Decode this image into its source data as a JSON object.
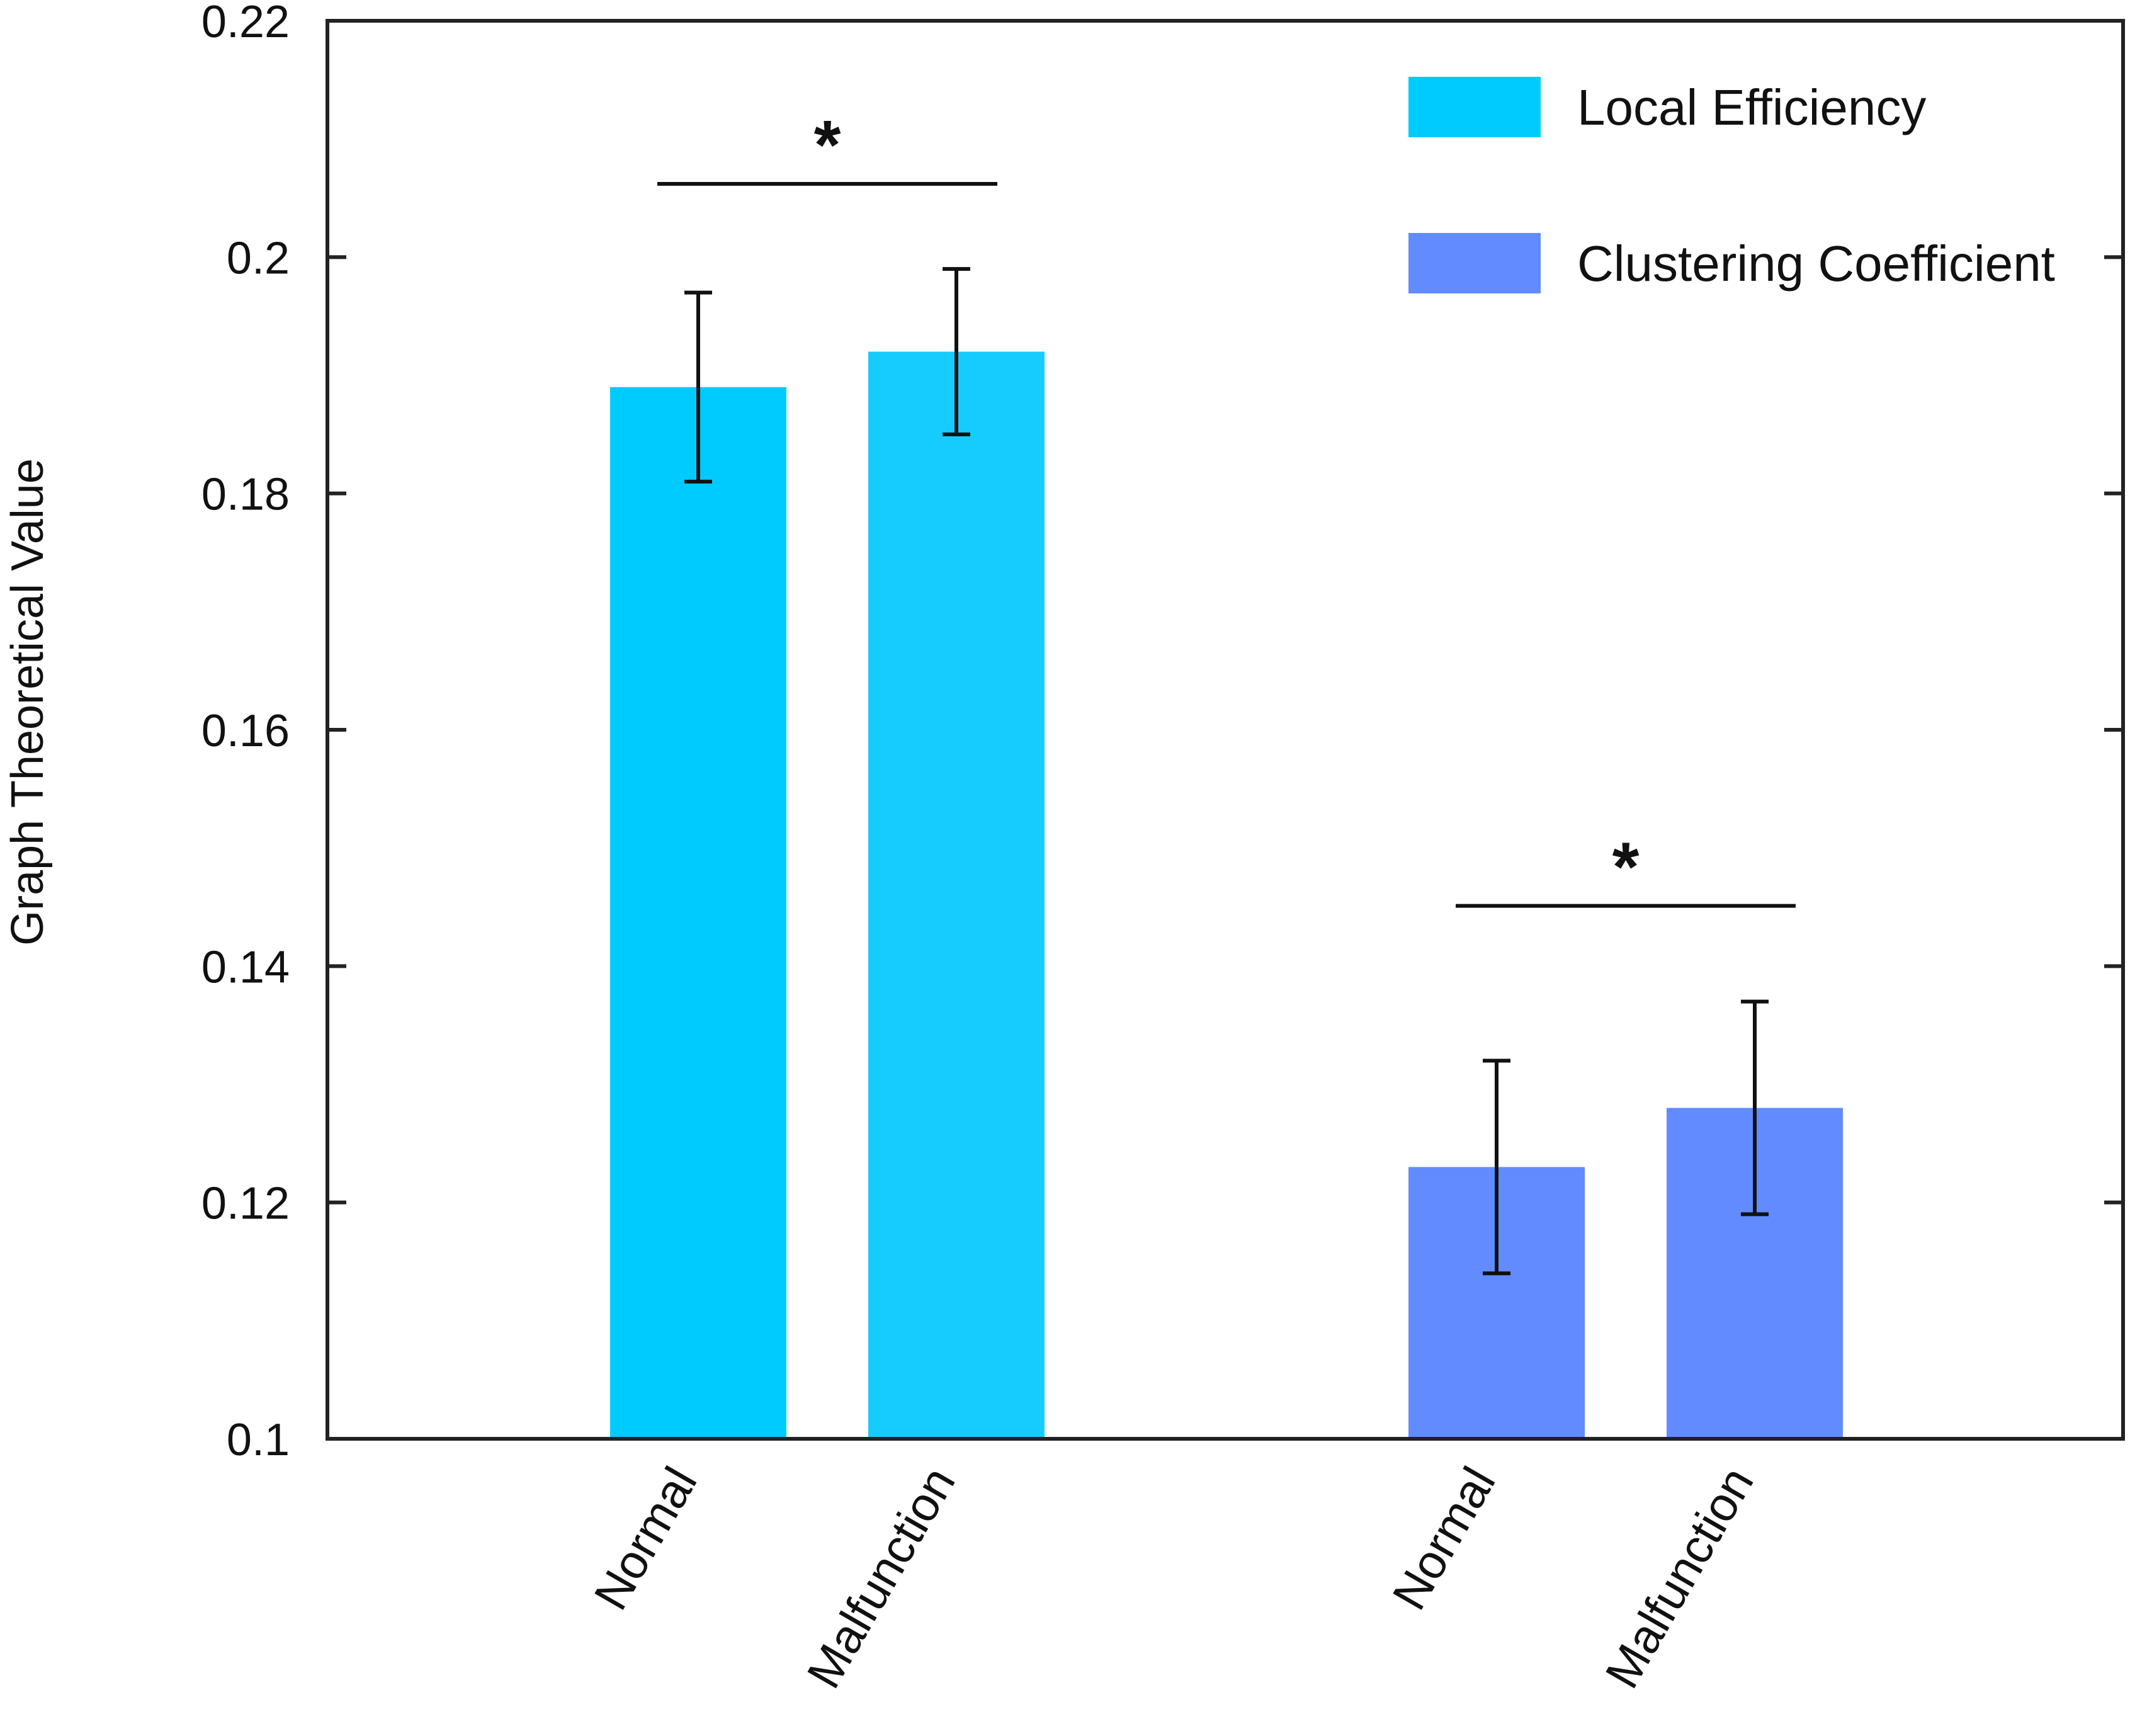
{
  "chart_data": {
    "type": "bar",
    "title": "",
    "xlabel": "",
    "ylabel": "Graph Theoretical Value",
    "ylim": [
      0.1,
      0.22
    ],
    "yticks": [
      "0.1",
      "0.12",
      "0.14",
      "0.16",
      "0.18",
      "0.2",
      "0.22"
    ],
    "ytick_values": [
      0.1,
      0.12,
      0.14,
      0.16,
      0.18,
      0.2,
      0.22
    ],
    "grid": false,
    "legend_position": "top-right",
    "series": [
      {
        "name": "Local Efficiency",
        "color": "#00CBFF",
        "bars": [
          {
            "category": "Normal",
            "value": 0.189,
            "err_low": 0.181,
            "err_high": 0.197,
            "color": "#00CBFF"
          },
          {
            "category": "Malfunction",
            "value": 0.192,
            "err_low": 0.185,
            "err_high": 0.199,
            "color": "#16CCFF"
          }
        ],
        "significance": "*"
      },
      {
        "name": "Clustering Coefficient",
        "color": "#618BFF",
        "bars": [
          {
            "category": "Normal",
            "value": 0.123,
            "err_low": 0.114,
            "err_high": 0.132,
            "color": "#618BFF"
          },
          {
            "category": "Malfunction",
            "value": 0.128,
            "err_low": 0.119,
            "err_high": 0.137,
            "color": "#618BFF"
          }
        ],
        "significance": "*"
      }
    ]
  }
}
